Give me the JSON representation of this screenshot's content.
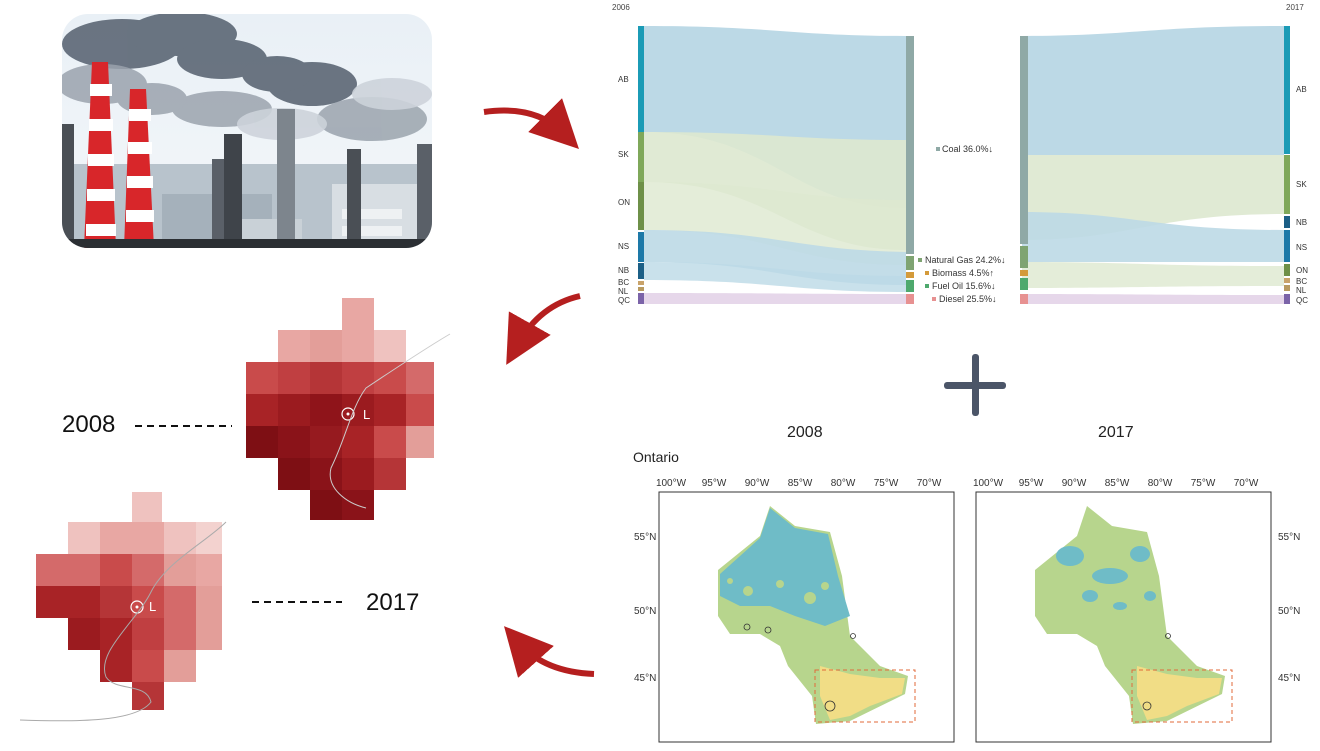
{
  "sankey": {
    "year_left": "2006",
    "year_right": "2017",
    "left_nodes": [
      "AB",
      "SK",
      "ON",
      "NS",
      "NB",
      "BC",
      "NL",
      "QC"
    ],
    "right_nodes": [
      "AB",
      "SK",
      "NB",
      "NS",
      "ON",
      "BC",
      "NL",
      "QC"
    ],
    "fuel_labels": [
      "Coal 36.0%↓",
      "Natural Gas 24.2%↓",
      "Biomass 4.5%↑",
      "Fuel Oil 15.6%↓",
      "Diesel 25.5%↓"
    ],
    "colors": {
      "ab": "#1b9bb6",
      "sk": "#7fa85a",
      "on": "#6e9048",
      "ns": "#1d79a8",
      "nb": "#1b5f86",
      "bc": "#c9a36a",
      "nl": "#b89a5f",
      "qc": "#7b63a8",
      "flow_blue": "#bcd9e6",
      "flow_green": "#dde8cf",
      "flow_purple": "#e6d7ea",
      "coal": "#8fa9a6",
      "gas": "#7fa472",
      "biomass": "#d49a3a",
      "oil": "#4ea96d",
      "diesel": "#e79191"
    }
  },
  "grid_cells": {
    "year_upper": "2008",
    "year_lower": "2017",
    "marker_label": "L"
  },
  "maps": {
    "region": "Ontario",
    "year_left": "2008",
    "year_right": "2017",
    "lon_ticks": [
      "100°W",
      "95°W",
      "90°W",
      "85°W",
      "80°W",
      "75°W",
      "70°W"
    ],
    "lat_ticks": [
      "55°N",
      "50°N",
      "45°N"
    ],
    "colors": {
      "water": "#6fbcc7",
      "land": "#b7d58d",
      "south": "#f1dd86",
      "frame": "#333333",
      "box": "#e06a3a"
    }
  },
  "plus_symbol": "+"
}
